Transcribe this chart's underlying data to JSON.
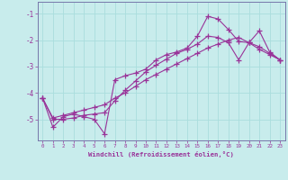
{
  "xlabel": "Windchill (Refroidissement éolien,°C)",
  "bg_color": "#c8ecec",
  "line_color": "#993399",
  "grid_color": "#aadddd",
  "series": [
    {
      "x": [
        0,
        1,
        2,
        3,
        4,
        5,
        6,
        7,
        8,
        9,
        10,
        11,
        12,
        13,
        14,
        15,
        16,
        17,
        18,
        19,
        20,
        21,
        22,
        23
      ],
      "y": [
        -4.2,
        -5.3,
        -4.9,
        -4.8,
        -4.9,
        -5.0,
        -5.55,
        -3.5,
        -3.35,
        -3.25,
        -3.1,
        -2.75,
        -2.55,
        -2.45,
        -2.3,
        -1.85,
        -1.1,
        -1.2,
        -1.6,
        -2.05,
        -2.1,
        -1.65,
        -2.45,
        -2.75
      ]
    },
    {
      "x": [
        0,
        1,
        2,
        3,
        4,
        5,
        6,
        7,
        8,
        9,
        10,
        11,
        12,
        13,
        14,
        15,
        16,
        17,
        18,
        19,
        20,
        21,
        22,
        23
      ],
      "y": [
        -4.2,
        -5.0,
        -5.0,
        -4.95,
        -4.85,
        -4.8,
        -4.75,
        -4.3,
        -3.9,
        -3.55,
        -3.2,
        -2.95,
        -2.72,
        -2.5,
        -2.35,
        -2.15,
        -1.85,
        -1.9,
        -2.1,
        -2.75,
        -2.1,
        -2.35,
        -2.55,
        -2.75
      ]
    },
    {
      "x": [
        0,
        1,
        2,
        3,
        4,
        5,
        6,
        7,
        8,
        9,
        10,
        11,
        12,
        13,
        14,
        15,
        16,
        17,
        18,
        19,
        20,
        21,
        22,
        23
      ],
      "y": [
        -4.2,
        -4.95,
        -4.85,
        -4.75,
        -4.65,
        -4.55,
        -4.45,
        -4.2,
        -4.0,
        -3.75,
        -3.5,
        -3.3,
        -3.1,
        -2.9,
        -2.7,
        -2.5,
        -2.3,
        -2.15,
        -2.0,
        -1.9,
        -2.1,
        -2.25,
        -2.5,
        -2.75
      ]
    }
  ],
  "xlim": [
    -0.5,
    23.5
  ],
  "ylim": [
    -5.8,
    -0.55
  ],
  "xticks": [
    0,
    1,
    2,
    3,
    4,
    5,
    6,
    7,
    8,
    9,
    10,
    11,
    12,
    13,
    14,
    15,
    16,
    17,
    18,
    19,
    20,
    21,
    22,
    23
  ],
  "yticks": [
    -5,
    -4,
    -3,
    -2,
    -1
  ],
  "marker": "+",
  "markersize": 4,
  "linewidth": 0.8
}
